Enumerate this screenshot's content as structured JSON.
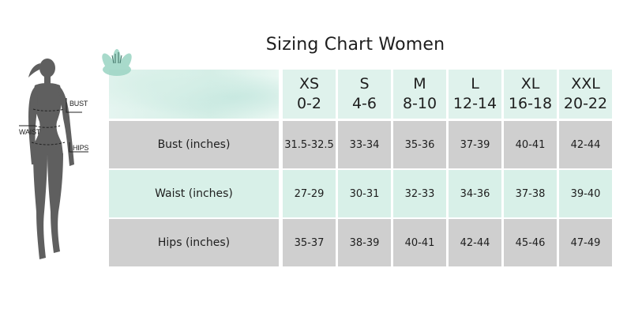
{
  "title": "Sizing Chart Women",
  "figure_labels": {
    "bust": "BUST",
    "waist": "WAIST",
    "hips": "HIPS"
  },
  "sizes": [
    {
      "name": "XS",
      "range": "0-2"
    },
    {
      "name": "S",
      "range": "4-6"
    },
    {
      "name": "M",
      "range": "8-10"
    },
    {
      "name": "L",
      "range": "12-14"
    },
    {
      "name": "XL",
      "range": "16-18"
    },
    {
      "name": "XXL",
      "range": "20-22"
    }
  ],
  "rows": [
    {
      "label": "Bust (inches)",
      "values": [
        "31.5-32.5",
        "33-34",
        "35-36",
        "37-39",
        "40-41",
        "42-44"
      ]
    },
    {
      "label": "Waist (inches)",
      "values": [
        "27-29",
        "30-31",
        "32-33",
        "34-36",
        "37-38",
        "39-40"
      ]
    },
    {
      "label": "Hips (inches)",
      "values": [
        "35-37",
        "38-39",
        "40-41",
        "42-44",
        "45-46",
        "47-49"
      ]
    }
  ],
  "colors": {
    "mint": "#dff2ec",
    "gray": "#cfcfcf",
    "silhouette": "#5f5f5f"
  }
}
